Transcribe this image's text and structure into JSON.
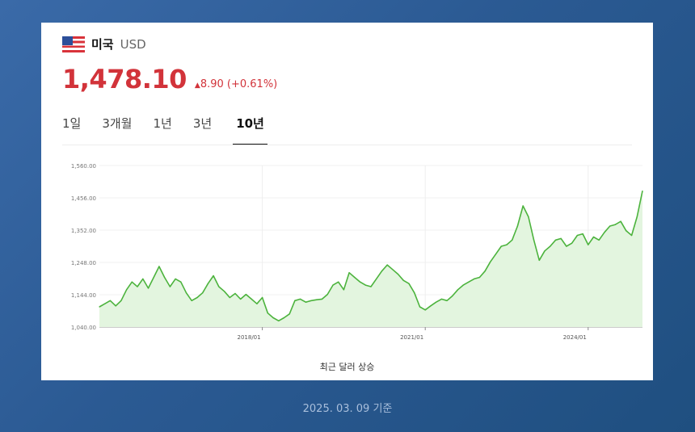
{
  "header": {
    "flag_icon": "us-flag-icon",
    "country": "미국",
    "currency": "USD"
  },
  "quote": {
    "price": "1,478.10",
    "change_arrow": "▲",
    "change": "8.90 (+0.61%)",
    "color": "#d2333a"
  },
  "tabs": [
    {
      "label": "1일",
      "active": false
    },
    {
      "label": "3개월",
      "active": false
    },
    {
      "label": "1년",
      "active": false
    },
    {
      "label": "3년",
      "active": false
    },
    {
      "label": "10년",
      "active": true
    }
  ],
  "chart_data": {
    "type": "area",
    "line_color": "#4cb33d",
    "fill_color": "#e3f5df",
    "y_ticks": [
      "1,560.00",
      "1,456.00",
      "1,352.00",
      "1,248.00",
      "1,144.00",
      "1,040.00"
    ],
    "ylim": [
      1040,
      1560
    ],
    "x_ticks": [
      {
        "label": "2018/01",
        "x": 2018.0
      },
      {
        "label": "2021/01",
        "x": 2021.0
      },
      {
        "label": "2024/01",
        "x": 2024.0
      }
    ],
    "xlim": [
      2015.0,
      2025.0
    ],
    "grid": true,
    "x": [
      2015.0,
      2015.1,
      2015.2,
      2015.3,
      2015.4,
      2015.5,
      2015.6,
      2015.7,
      2015.8,
      2015.9,
      2016.0,
      2016.1,
      2016.2,
      2016.3,
      2016.4,
      2016.5,
      2016.6,
      2016.7,
      2016.8,
      2016.9,
      2017.0,
      2017.1,
      2017.2,
      2017.3,
      2017.4,
      2017.5,
      2017.6,
      2017.7,
      2017.8,
      2017.9,
      2018.0,
      2018.1,
      2018.2,
      2018.3,
      2018.4,
      2018.5,
      2018.6,
      2018.7,
      2018.8,
      2018.9,
      2019.0,
      2019.1,
      2019.2,
      2019.3,
      2019.4,
      2019.5,
      2019.6,
      2019.7,
      2019.8,
      2019.9,
      2020.0,
      2020.1,
      2020.2,
      2020.3,
      2020.4,
      2020.5,
      2020.6,
      2020.7,
      2020.8,
      2020.9,
      2021.0,
      2021.1,
      2021.2,
      2021.3,
      2021.4,
      2021.5,
      2021.6,
      2021.7,
      2021.8,
      2021.9,
      2022.0,
      2022.1,
      2022.2,
      2022.3,
      2022.4,
      2022.5,
      2022.6,
      2022.7,
      2022.8,
      2022.9,
      2023.0,
      2023.1,
      2023.2,
      2023.3,
      2023.4,
      2023.5,
      2023.6,
      2023.7,
      2023.8,
      2023.9,
      2024.0,
      2024.1,
      2024.2,
      2024.3,
      2024.4,
      2024.5,
      2024.6,
      2024.7,
      2024.8,
      2024.9,
      2025.0
    ],
    "values": [
      1105,
      1115,
      1125,
      1108,
      1125,
      1160,
      1185,
      1170,
      1195,
      1165,
      1200,
      1235,
      1200,
      1170,
      1195,
      1185,
      1150,
      1125,
      1135,
      1150,
      1180,
      1205,
      1170,
      1155,
      1135,
      1148,
      1130,
      1145,
      1130,
      1115,
      1135,
      1085,
      1070,
      1060,
      1070,
      1082,
      1125,
      1130,
      1120,
      1125,
      1128,
      1130,
      1145,
      1175,
      1185,
      1160,
      1215,
      1200,
      1185,
      1175,
      1170,
      1195,
      1220,
      1240,
      1225,
      1210,
      1190,
      1180,
      1150,
      1105,
      1095,
      1108,
      1120,
      1130,
      1125,
      1140,
      1160,
      1175,
      1185,
      1195,
      1200,
      1220,
      1250,
      1275,
      1300,
      1305,
      1320,
      1365,
      1430,
      1395,
      1320,
      1255,
      1285,
      1300,
      1320,
      1325,
      1300,
      1310,
      1335,
      1340,
      1305,
      1330,
      1320,
      1345,
      1365,
      1370,
      1380,
      1350,
      1335,
      1395,
      1478
    ]
  },
  "caption": "최근 달러 상승",
  "date_note": "2025. 03. 09 기준"
}
